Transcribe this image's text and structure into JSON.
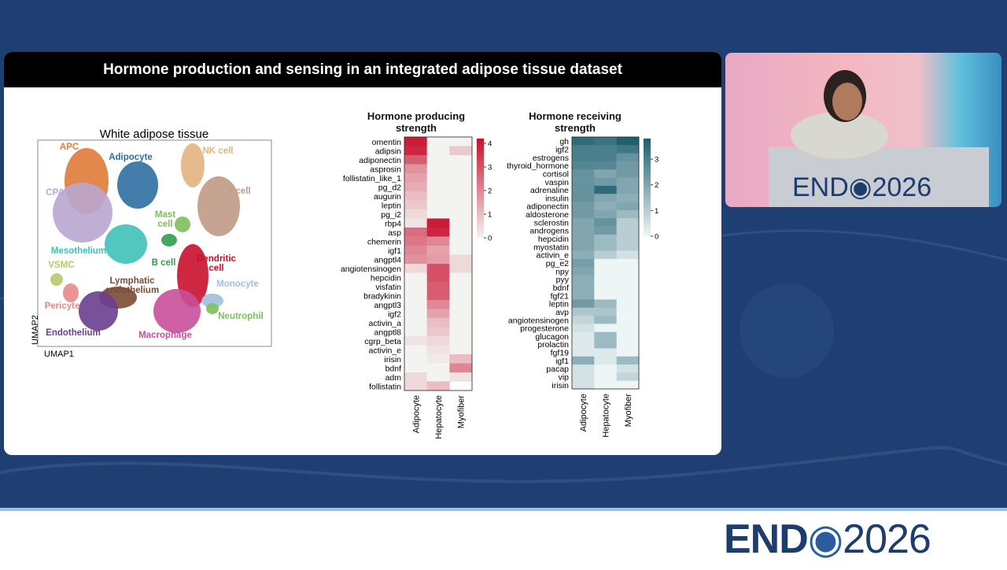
{
  "slide": {
    "title": "Hormone production and sensing in an integrated adipose tissue dataset"
  },
  "umap": {
    "title": "White adipose tissue",
    "x_label": "UMAP1",
    "y_label": "UMAP2",
    "clusters": [
      {
        "label": "APC",
        "color": "#e07b39"
      },
      {
        "label": "Adipocyte",
        "color": "#2e6fa3"
      },
      {
        "label": "CPA",
        "color": "#b9a6cf"
      },
      {
        "label": "NK cell",
        "color": "#e3b37f"
      },
      {
        "label": "T cell",
        "color": "#bf9a86"
      },
      {
        "label": "Mast cell",
        "color": "#7dbf5e"
      },
      {
        "label": "Mesothelium",
        "color": "#3fc1b8"
      },
      {
        "label": "B cell",
        "color": "#2e9e4f"
      },
      {
        "label": "Dendritic cell",
        "color": "#c8102e"
      },
      {
        "label": "VSMC",
        "color": "#b8c86a"
      },
      {
        "label": "Lymphatic endothelium",
        "color": "#7a4a34"
      },
      {
        "label": "Monocyte",
        "color": "#9fbfdc"
      },
      {
        "label": "Pericyte",
        "color": "#e8888c"
      },
      {
        "label": "Neutrophil",
        "color": "#7dbf5e"
      },
      {
        "label": "Endothelium",
        "color": "#6a3d8f"
      },
      {
        "label": "Macrophage",
        "color": "#c94f9a"
      }
    ]
  },
  "chart_data": [
    {
      "type": "heatmap",
      "title": "Hormone producing strength",
      "columns": [
        "Adipocyte",
        "Hepatocyte",
        "Myofiber"
      ],
      "rows": [
        "omentin",
        "adipsin",
        "adiponectin",
        "asprosin",
        "follistatin_like_1",
        "pg_d2",
        "augurin",
        "leptin",
        "pg_i2",
        "rbp4",
        "asp",
        "chemerin",
        "igf1",
        "angptl4",
        "angiotensinogen",
        "hepcidin",
        "visfatin",
        "bradykinin",
        "angptl3",
        "igf2",
        "activin_a",
        "angptl8",
        "cgrp_beta",
        "activin_e",
        "irisin",
        "bdnf",
        "adm",
        "follistatin"
      ],
      "values": [
        [
          4,
          0,
          0
        ],
        [
          3.8,
          0,
          0.8
        ],
        [
          2.8,
          0,
          0
        ],
        [
          1.8,
          0,
          0
        ],
        [
          1.5,
          0,
          0
        ],
        [
          1.3,
          0,
          0
        ],
        [
          1,
          0,
          0
        ],
        [
          0.8,
          0,
          0
        ],
        [
          0.5,
          0,
          0
        ],
        [
          0.3,
          4,
          0
        ],
        [
          2.5,
          3.8,
          0
        ],
        [
          2.3,
          2,
          0
        ],
        [
          2,
          1.5,
          0
        ],
        [
          1.8,
          1.6,
          0.5
        ],
        [
          0.5,
          3,
          0.5
        ],
        [
          0,
          3,
          0
        ],
        [
          0,
          2.8,
          0
        ],
        [
          0,
          2.8,
          0
        ],
        [
          0,
          2,
          0
        ],
        [
          0,
          1.5,
          0
        ],
        [
          0,
          1,
          0
        ],
        [
          0,
          0.8,
          0
        ],
        [
          0.3,
          0.5,
          0
        ],
        [
          0,
          0.3,
          0
        ],
        [
          0,
          0.2,
          1
        ],
        [
          0,
          0,
          2
        ],
        [
          0.5,
          0,
          0.3
        ],
        [
          0.5,
          1,
          null
        ]
      ],
      "zlim": [
        0,
        4.2
      ],
      "colorbar_ticks": [
        0,
        1,
        2,
        3,
        4
      ],
      "color_low": "#f3f3f1",
      "color_high": "#c8102e"
    },
    {
      "type": "heatmap",
      "title": "Hormone receiving strength",
      "columns": [
        "Adipocyte",
        "Hepatocyte",
        "Myofiber"
      ],
      "rows": [
        "gh",
        "igf2",
        "estrogens",
        "thyroid_hormone",
        "cortisol",
        "vaspin",
        "adrenaline",
        "insulin",
        "adiponectin",
        "aldosterone",
        "sclerostin",
        "androgens",
        "hepcidin",
        "myostatin",
        "activin_e",
        "pg_e2",
        "npy",
        "pyy",
        "bdnf",
        "fgf21",
        "leptin",
        "avp",
        "angiotensinogen",
        "progesterone",
        "glucagon",
        "prolactin",
        "fgf19",
        "igf1",
        "pacap",
        "vip",
        "irisin"
      ],
      "values": [
        [
          3.5,
          3.3,
          3.8
        ],
        [
          3,
          3,
          3.2
        ],
        [
          3,
          3,
          2.5
        ],
        [
          2.8,
          2.8,
          2.3
        ],
        [
          2.5,
          2,
          2.3
        ],
        [
          2.5,
          2.3,
          2
        ],
        [
          2.5,
          3.5,
          2
        ],
        [
          2.5,
          2,
          1.8
        ],
        [
          2.3,
          1.8,
          2
        ],
        [
          2.3,
          2,
          1.5
        ],
        [
          2,
          2.5,
          1
        ],
        [
          2,
          2.3,
          1
        ],
        [
          2,
          1.5,
          1
        ],
        [
          2,
          1.5,
          1
        ],
        [
          1.8,
          1,
          0.5
        ],
        [
          2.2,
          0,
          0
        ],
        [
          2,
          0,
          0
        ],
        [
          1.8,
          0,
          0
        ],
        [
          1.8,
          0,
          0
        ],
        [
          1.8,
          0,
          0
        ],
        [
          2.3,
          1.5,
          0
        ],
        [
          1.2,
          1.2,
          0
        ],
        [
          0.8,
          1.5,
          0
        ],
        [
          0.5,
          0,
          0
        ],
        [
          0.3,
          1.5,
          0
        ],
        [
          0.3,
          1.5,
          0
        ],
        [
          0.3,
          0.3,
          0
        ],
        [
          1.8,
          0.3,
          1.5
        ],
        [
          0.5,
          0,
          0.5
        ],
        [
          0.5,
          0,
          0.8
        ],
        [
          0.5,
          0,
          0
        ]
      ],
      "zlim": [
        0,
        3.8
      ],
      "colorbar_ticks": [
        0,
        1,
        2,
        3
      ],
      "color_low": "#eef5f5",
      "color_high": "#1f5f70"
    }
  ],
  "logo": {
    "brand": "END",
    "year": "2026"
  }
}
